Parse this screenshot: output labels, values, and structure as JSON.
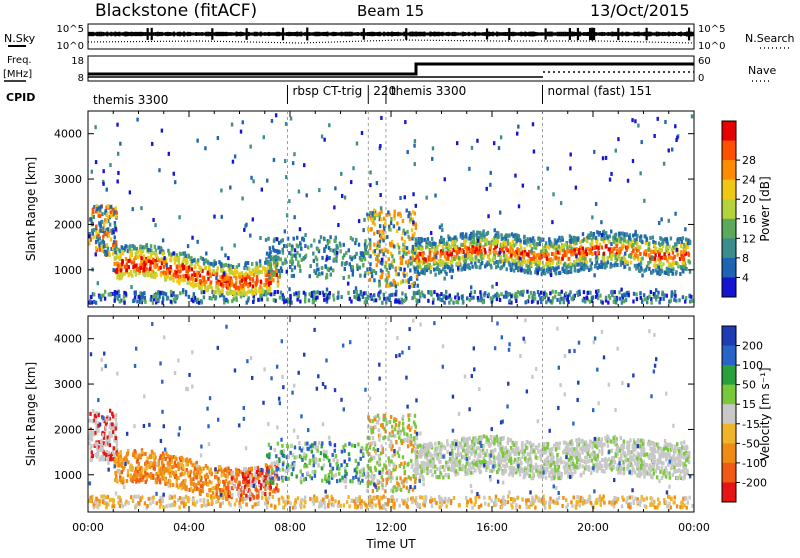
{
  "header": {
    "station": "Blackstone (fitACF)",
    "beam": "Beam 15",
    "date": "13/Oct/2015"
  },
  "top_labels": {
    "nsky": "N.Sky",
    "nsearch": "N.Search",
    "freq_line1": "Freq.",
    "freq_line2": "[MHz]",
    "nave": "Nave",
    "cpid": "CPID",
    "nsky_ticks": [
      "10^5",
      "10^0"
    ],
    "freq_ticks": [
      "18",
      "8"
    ],
    "nave_ticks": [
      "60",
      "0"
    ]
  },
  "cpid_segments": [
    {
      "label": "themis 3300",
      "start_hour": 0.0
    },
    {
      "label": "rbsp CT-trig",
      "start_hour": 7.9
    },
    {
      "label": "220",
      "start_hour": 11.1
    },
    {
      "label": "themis 3300",
      "start_hour": 11.8
    },
    {
      "label": "normal (fast) 151",
      "start_hour": 18.0
    }
  ],
  "chart_data": [
    {
      "type": "heatmap",
      "quantity": "Power",
      "ylabel": "Slant Range [km]",
      "xlabel": "",
      "xlim_hours": [
        0,
        24
      ],
      "ylim": [
        180,
        4500
      ],
      "yticks": [
        "1000",
        "2000",
        "3000",
        "4000"
      ],
      "colorbar_label": "Power [dB]",
      "colorbar_ticks": [
        "4",
        "8",
        "12",
        "16",
        "20",
        "24",
        "28"
      ],
      "colorbar_range": [
        0,
        32
      ],
      "colors": [
        "#1414d2",
        "#1e64b4",
        "#3c8c8c",
        "#5aaa5a",
        "#b4d23c",
        "#f0c814",
        "#ff8c00",
        "#ff5000",
        "#e60000"
      ]
    },
    {
      "type": "heatmap",
      "quantity": "Velocity",
      "ylabel": "Slant Range [km]",
      "xlabel": "Time UT",
      "xlim_hours": [
        0,
        24
      ],
      "ylim": [
        180,
        4500
      ],
      "yticks": [
        "1000",
        "2000",
        "3000",
        "4000"
      ],
      "xticks": [
        "00:00",
        "04:00",
        "08:00",
        "12:00",
        "16:00",
        "20:00",
        "00:00"
      ],
      "colorbar_label": "Velocity [m s⁻¹]",
      "colorbar_ticks": [
        "200",
        "100",
        "50",
        "15",
        "-15",
        "-50",
        "-100",
        "-200"
      ],
      "colors": [
        "#1e3cb4",
        "#2864c8",
        "#28a03c",
        "#78c83c",
        "#c8c8c8",
        "#f0b428",
        "#f08c14",
        "#f05a14",
        "#e61414"
      ]
    }
  ]
}
